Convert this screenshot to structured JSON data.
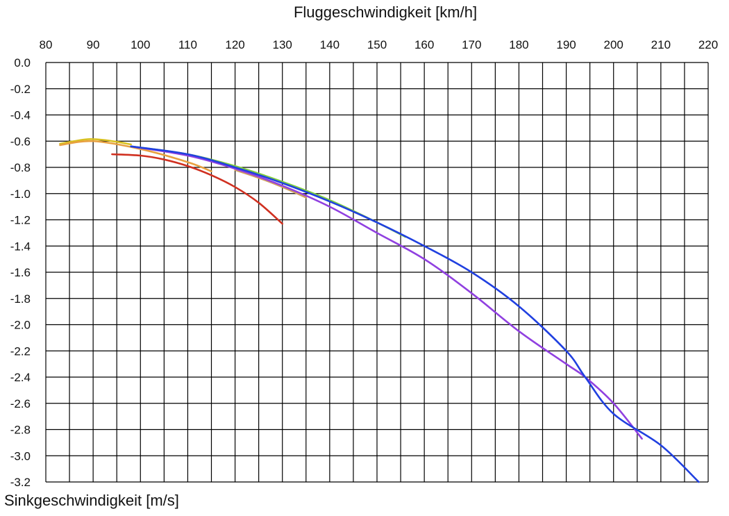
{
  "chart_data": {
    "type": "line",
    "title": "Fluggeschwindigkeit [km/h]",
    "xlabel": "Fluggeschwindigkeit [km/h]",
    "ylabel": "Sinkgeschwindigkeit [m/s]",
    "xlim": [
      80,
      220
    ],
    "ylim": [
      -3.2,
      0.0
    ],
    "x_axis_position": "top",
    "x_ticks": [
      80,
      90,
      100,
      110,
      120,
      130,
      140,
      150,
      160,
      170,
      180,
      190,
      200,
      210,
      220
    ],
    "y_ticks": [
      0.0,
      -0.2,
      -0.4,
      -0.6,
      -0.8,
      -1.0,
      -1.2,
      -1.4,
      -1.6,
      -1.8,
      -2.0,
      -2.2,
      -2.4,
      -2.6,
      -2.8,
      -3.0,
      -3.2
    ],
    "x_tick_labels": [
      "80",
      "90",
      "100",
      "110",
      "120",
      "130",
      "140",
      "150",
      "160",
      "170",
      "180",
      "190",
      "200",
      "210",
      "220"
    ],
    "y_tick_labels": [
      "0.0",
      "-0.2",
      "-0.4",
      "-0.6",
      "-0.8",
      "-1.0",
      "-1.2",
      "-1.4",
      "-1.6",
      "-1.8",
      "-2.0",
      "-2.2",
      "-2.4",
      "-2.6",
      "-2.8",
      "-3.0",
      "-3.2"
    ],
    "grid": {
      "x_step": 5,
      "y_step": 0.2,
      "visible": true
    },
    "legend": "none",
    "series": [
      {
        "color": "#d8c020",
        "x": [
          83,
          86,
          89,
          92,
          95,
          98
        ],
        "y": [
          -0.62,
          -0.6,
          -0.585,
          -0.59,
          -0.605,
          -0.625
        ]
      },
      {
        "color": "#e8a040",
        "x": [
          83,
          90,
          100,
          110,
          115
        ],
        "y": [
          -0.63,
          -0.6,
          -0.66,
          -0.76,
          -0.83
        ]
      },
      {
        "color": "#d03020",
        "x": [
          94,
          100,
          105,
          110,
          115,
          120,
          125,
          130
        ],
        "y": [
          -0.7,
          -0.71,
          -0.74,
          -0.79,
          -0.86,
          -0.95,
          -1.07,
          -1.23
        ]
      },
      {
        "color": "#80d040",
        "x": [
          98,
          110,
          120,
          130,
          140,
          150,
          156
        ],
        "y": [
          -0.64,
          -0.7,
          -0.79,
          -0.91,
          -1.05,
          -1.22,
          -1.33
        ]
      },
      {
        "color": "#d0a060",
        "x": [
          120,
          125,
          130,
          135
        ],
        "y": [
          -0.82,
          -0.88,
          -0.95,
          -1.03
        ]
      },
      {
        "color": "#9040e0",
        "x": [
          98,
          110,
          120,
          130,
          140,
          150,
          160,
          170,
          180,
          190,
          194,
          200,
          206
        ],
        "y": [
          -0.64,
          -0.71,
          -0.81,
          -0.94,
          -1.1,
          -1.3,
          -1.5,
          -1.76,
          -2.05,
          -2.3,
          -2.4,
          -2.6,
          -2.87
        ]
      },
      {
        "color": "#2040e0",
        "x": [
          98,
          110,
          120,
          130,
          140,
          150,
          160,
          170,
          180,
          190,
          194,
          200,
          210,
          218
        ],
        "y": [
          -0.64,
          -0.7,
          -0.8,
          -0.92,
          -1.06,
          -1.22,
          -1.4,
          -1.6,
          -1.86,
          -2.2,
          -2.4,
          -2.68,
          -2.92,
          -3.2
        ]
      }
    ]
  }
}
